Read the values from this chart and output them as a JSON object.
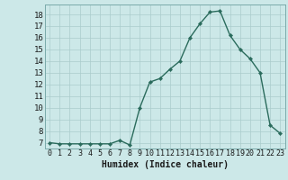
{
  "x": [
    0,
    1,
    2,
    3,
    4,
    5,
    6,
    7,
    8,
    9,
    10,
    11,
    12,
    13,
    14,
    15,
    16,
    17,
    18,
    19,
    20,
    21,
    22,
    23
  ],
  "y": [
    7.0,
    6.9,
    6.9,
    6.9,
    6.9,
    6.9,
    6.9,
    7.2,
    6.8,
    10.0,
    12.2,
    12.5,
    13.3,
    14.0,
    16.0,
    17.2,
    18.2,
    18.3,
    16.2,
    15.0,
    14.2,
    13.0,
    8.5,
    7.8
  ],
  "xlabel": "Humidex (Indice chaleur)",
  "bg_color": "#cce8e8",
  "grid_color": "#aacccc",
  "line_color": "#2a6b5c",
  "ylim": [
    6.5,
    18.85
  ],
  "xlim": [
    -0.5,
    23.5
  ],
  "yticks": [
    7,
    8,
    9,
    10,
    11,
    12,
    13,
    14,
    15,
    16,
    17,
    18
  ],
  "xtick_labels": [
    "0",
    "1",
    "2",
    "3",
    "4",
    "5",
    "6",
    "7",
    "8",
    "9",
    "10",
    "11",
    "12",
    "13",
    "14",
    "15",
    "16",
    "17",
    "18",
    "19",
    "20",
    "21",
    "22",
    "23"
  ]
}
